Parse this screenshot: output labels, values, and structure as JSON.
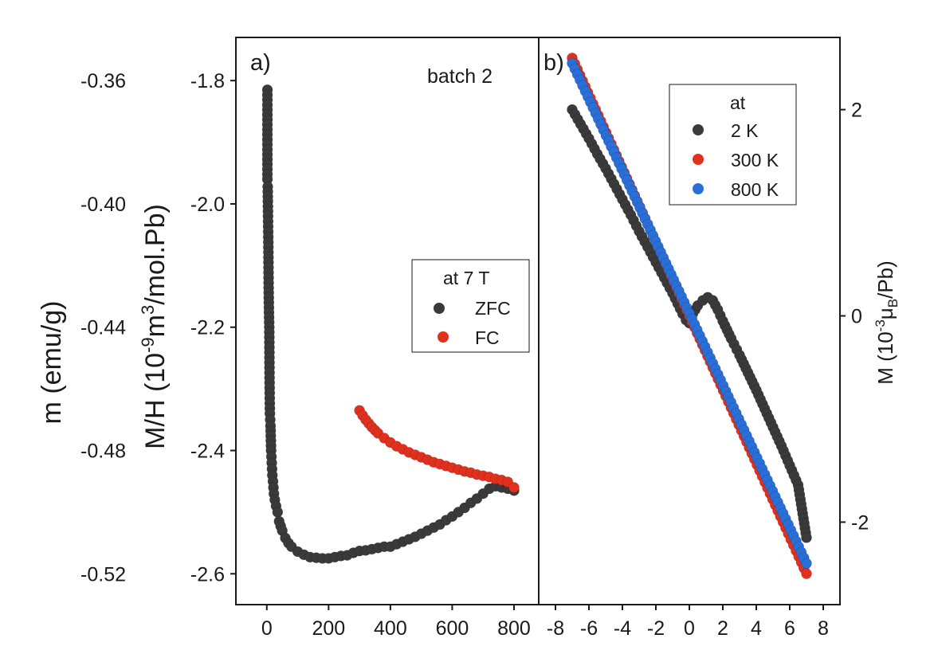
{
  "chart_data": [
    {
      "panel": "a)",
      "type": "scatter",
      "annotation": "batch 2",
      "xlabel": "",
      "ylabel_left": "m (emu/g)",
      "ylabel_right_parts": [
        "M/H (10",
        "-9",
        "m",
        "3",
        "/mol.Pb)"
      ],
      "xlim": [
        -100,
        880
      ],
      "ylim": [
        -2.65,
        -1.73
      ],
      "x_ticks": [
        0,
        200,
        400,
        600,
        800
      ],
      "x_tick_labels": [
        "0",
        "200",
        "400",
        "600",
        "800"
      ],
      "y_ticks": [
        -1.8,
        -2.0,
        -2.2,
        -2.4,
        -2.6
      ],
      "y_tick_labels": [
        "-1.8",
        "-2.0",
        "-2.2",
        "-2.4",
        "-2.6"
      ],
      "y2_ticks": [
        -0.36,
        -0.4,
        -0.44,
        -0.48,
        -0.52
      ],
      "y2_tick_labels": [
        "-0.36",
        "-0.40",
        "-0.44",
        "-0.48",
        "-0.52"
      ],
      "legend": {
        "title": "at 7 T",
        "placement": "right-middle"
      },
      "series": [
        {
          "name": "ZFC",
          "color": "#3a3a3a",
          "x": [
            2,
            2,
            3,
            4,
            5,
            6,
            7,
            8,
            9,
            10,
            12,
            14,
            16,
            18,
            20,
            23,
            26,
            30,
            35,
            40,
            50,
            60,
            70,
            80,
            100,
            120,
            140,
            160,
            180,
            200,
            220,
            240,
            260,
            280,
            300,
            320,
            340,
            360,
            380,
            400,
            420,
            440,
            460,
            480,
            500,
            520,
            540,
            560,
            580,
            600,
            620,
            640,
            660,
            680,
            700,
            720,
            740,
            760,
            780,
            800
          ],
          "y": [
            -1.815,
            -1.96,
            -1.972,
            -2.02,
            -2.062,
            -2.136,
            -2.176,
            -2.2,
            -2.29,
            -2.34,
            -2.36,
            -2.4,
            -2.42,
            -2.44,
            -2.45,
            -2.47,
            -2.48,
            -2.49,
            -2.5,
            -2.515,
            -2.53,
            -2.542,
            -2.55,
            -2.556,
            -2.564,
            -2.569,
            -2.573,
            -2.574,
            -2.575,
            -2.575,
            -2.573,
            -2.571,
            -2.57,
            -2.566,
            -2.563,
            -2.562,
            -2.56,
            -2.558,
            -2.556,
            -2.556,
            -2.552,
            -2.548,
            -2.544,
            -2.54,
            -2.535,
            -2.53,
            -2.525,
            -2.52,
            -2.513,
            -2.507,
            -2.5,
            -2.493,
            -2.485,
            -2.478,
            -2.47,
            -2.462,
            -2.458,
            -2.46,
            -2.462,
            -2.465
          ]
        },
        {
          "name": "FC",
          "color": "#e0301e",
          "x": [
            300,
            310,
            320,
            330,
            340,
            350,
            360,
            380,
            400,
            420,
            440,
            460,
            480,
            500,
            520,
            540,
            560,
            580,
            600,
            620,
            640,
            660,
            680,
            700,
            720,
            740,
            760,
            780,
            800
          ],
          "y": [
            -2.335,
            -2.343,
            -2.35,
            -2.356,
            -2.362,
            -2.367,
            -2.372,
            -2.38,
            -2.387,
            -2.393,
            -2.398,
            -2.403,
            -2.407,
            -2.411,
            -2.415,
            -2.419,
            -2.422,
            -2.425,
            -2.428,
            -2.431,
            -2.434,
            -2.436,
            -2.439,
            -2.441,
            -2.443,
            -2.446,
            -2.448,
            -2.451,
            -2.46
          ]
        }
      ]
    },
    {
      "panel": "b)",
      "type": "scatter",
      "xlabel": "",
      "ylabel_parts": [
        "M (10",
        "-3",
        "μ",
        "B",
        "/Pb)"
      ],
      "xlim": [
        -9,
        9
      ],
      "ylim": [
        -2.8,
        2.7
      ],
      "x_ticks": [
        -8,
        -6,
        -4,
        -2,
        0,
        2,
        4,
        6,
        8
      ],
      "x_tick_labels": [
        "-8",
        "-6",
        "-4",
        "-2",
        "0",
        "2",
        "4",
        "6",
        "8"
      ],
      "y_ticks": [
        2,
        0,
        -2
      ],
      "y_tick_labels": [
        "2",
        "0",
        "-2"
      ],
      "legend": {
        "title": "at",
        "placement": "top-right"
      },
      "series": [
        {
          "name": "2 K",
          "color": "#3a3a3a",
          "x": [
            -7,
            -6.5,
            -6,
            -5.5,
            -5,
            -4.5,
            -4,
            -3.5,
            -3,
            -2.5,
            -2,
            -1.5,
            -1,
            -0.7,
            -0.4,
            -0.2,
            0,
            0.2,
            0.5,
            0.8,
            1.1,
            1.4,
            1.7,
            2,
            2.5,
            3,
            3.5,
            4,
            4.5,
            5,
            5.5,
            6,
            6.5,
            7
          ],
          "y": [
            2.0,
            1.86,
            1.72,
            1.57,
            1.43,
            1.28,
            1.13,
            0.98,
            0.82,
            0.67,
            0.52,
            0.37,
            0.22,
            0.12,
            0.02,
            -0.04,
            -0.07,
            0.02,
            0.1,
            0.15,
            0.18,
            0.15,
            0.06,
            -0.05,
            -0.22,
            -0.38,
            -0.55,
            -0.72,
            -0.9,
            -1.08,
            -1.26,
            -1.45,
            -1.64,
            -2.15
          ]
        },
        {
          "name": "300 K",
          "color": "#e0301e",
          "x": [
            -7,
            7
          ],
          "y": [
            2.5,
            -2.5
          ]
        },
        {
          "name": "800 K",
          "color": "#2a6fd8",
          "x": [
            -7,
            7
          ],
          "y": [
            2.45,
            -2.4
          ]
        }
      ]
    }
  ]
}
